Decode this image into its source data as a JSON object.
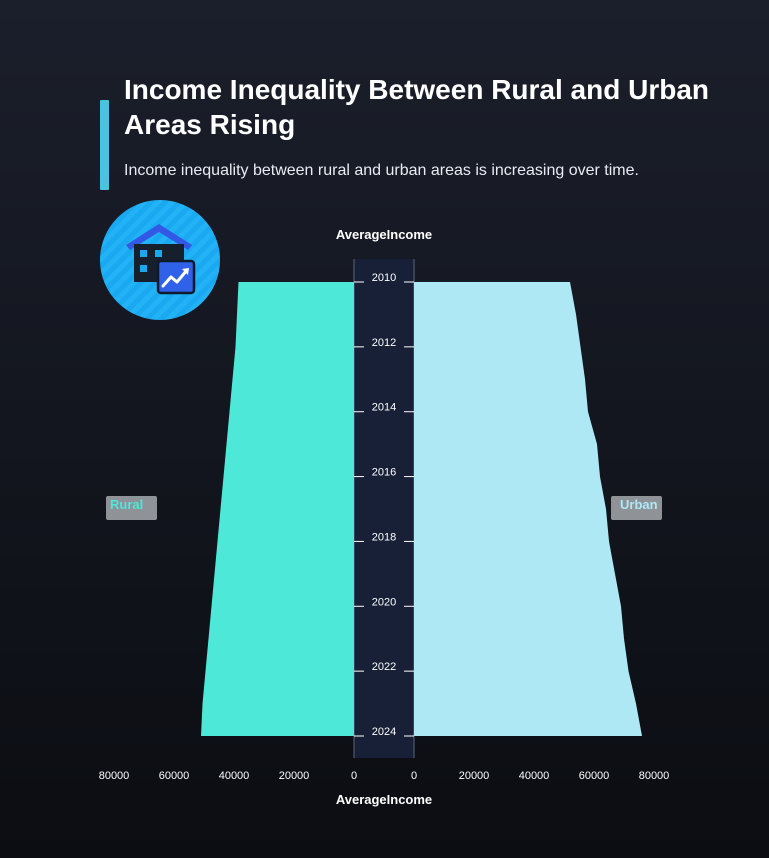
{
  "header": {
    "title": "Income Inequality Between Rural and Urban Areas Rising",
    "subtitle": "Income inequality between rural and urban areas is increasing over time."
  },
  "icon": {
    "name": "house-growth-icon",
    "color": "#1aa8f0"
  },
  "colors": {
    "rural": "#4de8d8",
    "urban": "#aee8f5",
    "center_band": "#172036",
    "label_box": "#8f9296"
  },
  "chart_data": {
    "type": "area",
    "x": [
      2010,
      2011,
      2012,
      2013,
      2014,
      2015,
      2016,
      2017,
      2018,
      2019,
      2020,
      2021,
      2022,
      2023,
      2024
    ],
    "year_ticks": [
      "2010",
      "2012",
      "2014",
      "2016",
      "2018",
      "2020",
      "2022",
      "2024"
    ],
    "series": [
      {
        "name": "Rural",
        "values": [
          38500,
          39000,
          39500,
          40500,
          41500,
          42500,
          43500,
          44500,
          45500,
          46500,
          47500,
          48500,
          49500,
          50500,
          51000
        ]
      },
      {
        "name": "Urban",
        "values": [
          52000,
          54000,
          55500,
          57000,
          58000,
          61000,
          62000,
          64000,
          65000,
          67000,
          69000,
          70000,
          71500,
          74000,
          76000
        ]
      }
    ],
    "xlabel_top": "AverageIncome",
    "xlabel_bottom": "AverageIncome",
    "income_ticks": [
      "80000",
      "60000",
      "40000",
      "20000",
      "0"
    ],
    "income_ticks_right": [
      "0",
      "20000",
      "40000",
      "60000",
      "80000"
    ],
    "xlim": [
      0,
      80000
    ],
    "legend": "left-right"
  }
}
